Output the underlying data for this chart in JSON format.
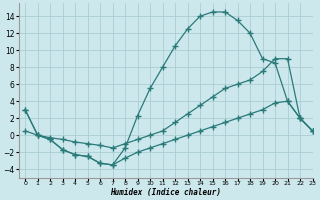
{
  "bg_color": "#cde8ec",
  "grid_color": "#aacdd4",
  "line_color": "#2a7a7a",
  "xlabel": "Humidex (Indice chaleur)",
  "xlim": [
    -0.5,
    23
  ],
  "ylim": [
    -5,
    15.5
  ],
  "yticks": [
    -4,
    -2,
    0,
    2,
    4,
    6,
    8,
    10,
    12,
    14
  ],
  "xticks": [
    0,
    1,
    2,
    3,
    4,
    5,
    6,
    7,
    8,
    9,
    10,
    11,
    12,
    13,
    14,
    15,
    16,
    17,
    18,
    19,
    20,
    21,
    22,
    23
  ],
  "line1_x": [
    0,
    1,
    2,
    3,
    4,
    5,
    6,
    7,
    8,
    9,
    10,
    11,
    12,
    13,
    14,
    15,
    16,
    17,
    18,
    19,
    20,
    21,
    22,
    23
  ],
  "line1_y": [
    3.0,
    0.0,
    -0.5,
    -1.7,
    -2.3,
    -2.5,
    -3.3,
    -3.5,
    -1.5,
    2.3,
    5.5,
    8.0,
    10.5,
    12.5,
    14.0,
    14.5,
    14.5,
    13.5,
    12.0,
    9.0,
    8.5,
    4.0,
    2.0,
    0.5
  ],
  "line2_x": [
    0,
    1,
    2,
    3,
    4,
    5,
    6,
    7,
    8,
    9,
    10,
    11,
    12,
    13,
    14,
    15,
    16,
    17,
    18,
    19,
    20,
    21,
    22,
    23
  ],
  "line2_y": [
    3.0,
    0.0,
    -0.5,
    -1.7,
    -2.3,
    -2.5,
    -3.3,
    -3.5,
    -2.7,
    -2.0,
    -1.5,
    -1.0,
    -0.5,
    0.0,
    0.5,
    1.0,
    1.5,
    2.0,
    2.5,
    3.0,
    3.8,
    4.0,
    2.0,
    0.5
  ],
  "line3_x": [
    0,
    1,
    2,
    3,
    4,
    5,
    6,
    7,
    8,
    9,
    10,
    11,
    12,
    13,
    14,
    15,
    16,
    17,
    18,
    19,
    20,
    21,
    22,
    23
  ],
  "line3_y": [
    0.5,
    0.0,
    -0.3,
    -0.5,
    -0.8,
    -1.0,
    -1.2,
    -1.5,
    -1.0,
    -0.5,
    0.0,
    0.5,
    1.5,
    2.5,
    3.5,
    4.5,
    5.5,
    6.0,
    6.5,
    7.5,
    9.0,
    9.0,
    2.0,
    0.5
  ]
}
